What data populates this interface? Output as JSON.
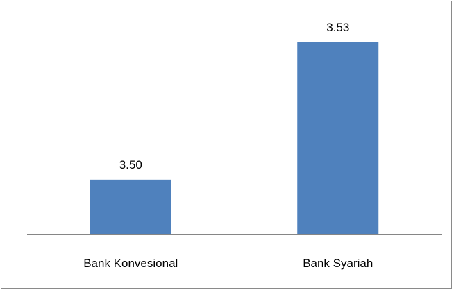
{
  "chart_data": {
    "type": "bar",
    "categories": [
      "Bank Konvesional",
      "Bank Syariah"
    ],
    "values": [
      3.5,
      3.53
    ],
    "data_labels": [
      "3.50",
      "3.53"
    ],
    "title": "",
    "xlabel": "",
    "ylabel": "",
    "ylim": [
      3.488,
      3.535
    ],
    "grid": false,
    "legend": "none",
    "bar_color": "#4f81bd",
    "axis_color": "#868686"
  }
}
